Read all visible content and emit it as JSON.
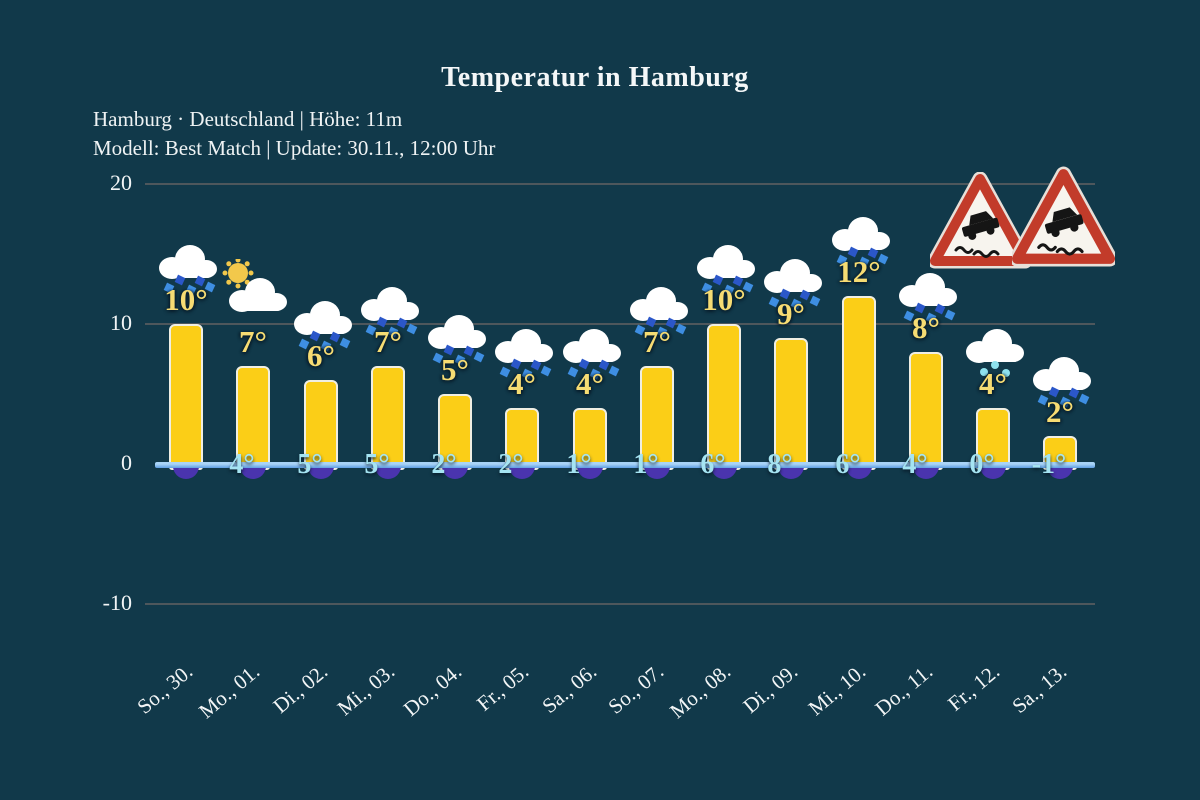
{
  "title": "Temperatur in Hamburg",
  "subtitle": {
    "line1": "Hamburg · Deutschland | Höhe: 11m",
    "line2": "Modell: Best Match | Update: 30.11., 12:00 Uhr"
  },
  "chart_data": {
    "type": "bar",
    "categories": [
      "So., 30.",
      "Mo., 01.",
      "Di., 02.",
      "Mi., 03.",
      "Do., 04.",
      "Fr., 05.",
      "Sa., 06.",
      "So., 07.",
      "Mo., 08.",
      "Di., 09.",
      "Mi., 10.",
      "Do., 11.",
      "Fr., 12.",
      "Sa., 13."
    ],
    "series": [
      {
        "name": "max-temperature",
        "values": [
          10,
          7,
          6,
          7,
          5,
          4,
          4,
          7,
          10,
          9,
          12,
          8,
          4,
          2
        ]
      },
      {
        "name": "min-temperature",
        "values": [
          null,
          4,
          5,
          5,
          2,
          2,
          1,
          1,
          6,
          8,
          6,
          4,
          0,
          -1
        ]
      }
    ],
    "unit": "°",
    "icons": [
      "rain-cloud",
      "sun-cloud",
      "rain-cloud",
      "rain-cloud",
      "rain-cloud",
      "rain-cloud",
      "rain-cloud",
      "rain-cloud",
      "rain-cloud",
      "rain-cloud",
      "rain-cloud",
      "rain-cloud",
      "drizzle-cloud",
      "rain-cloud"
    ],
    "xlabel": "",
    "ylabel": "",
    "y_ticks": [
      20,
      10,
      0,
      -10
    ],
    "ylim": [
      -13,
      22
    ],
    "grid": true,
    "legend_position": "none"
  },
  "warning_signs": {
    "icon": "slippery-road-sign",
    "count": 2
  },
  "colors": {
    "background": "#11394A",
    "bar_fill": "#FBCE17",
    "bar_border": "#EFEEE3",
    "max_label": "#F6DC73",
    "min_label": "#A5E4F2",
    "baseline_blue": "#74B4EB",
    "gridline": "#4E575C",
    "arc_purple": "#4A34AE",
    "rain_dot_dark": "#2B57C9",
    "rain_dot_light": "#3E8EE2",
    "drizzle_dot": "#8FE2EE",
    "sign_red": "#C23B2A",
    "cloud_white": "#FFFFFF",
    "sun_yellow": "#F2C84B"
  }
}
